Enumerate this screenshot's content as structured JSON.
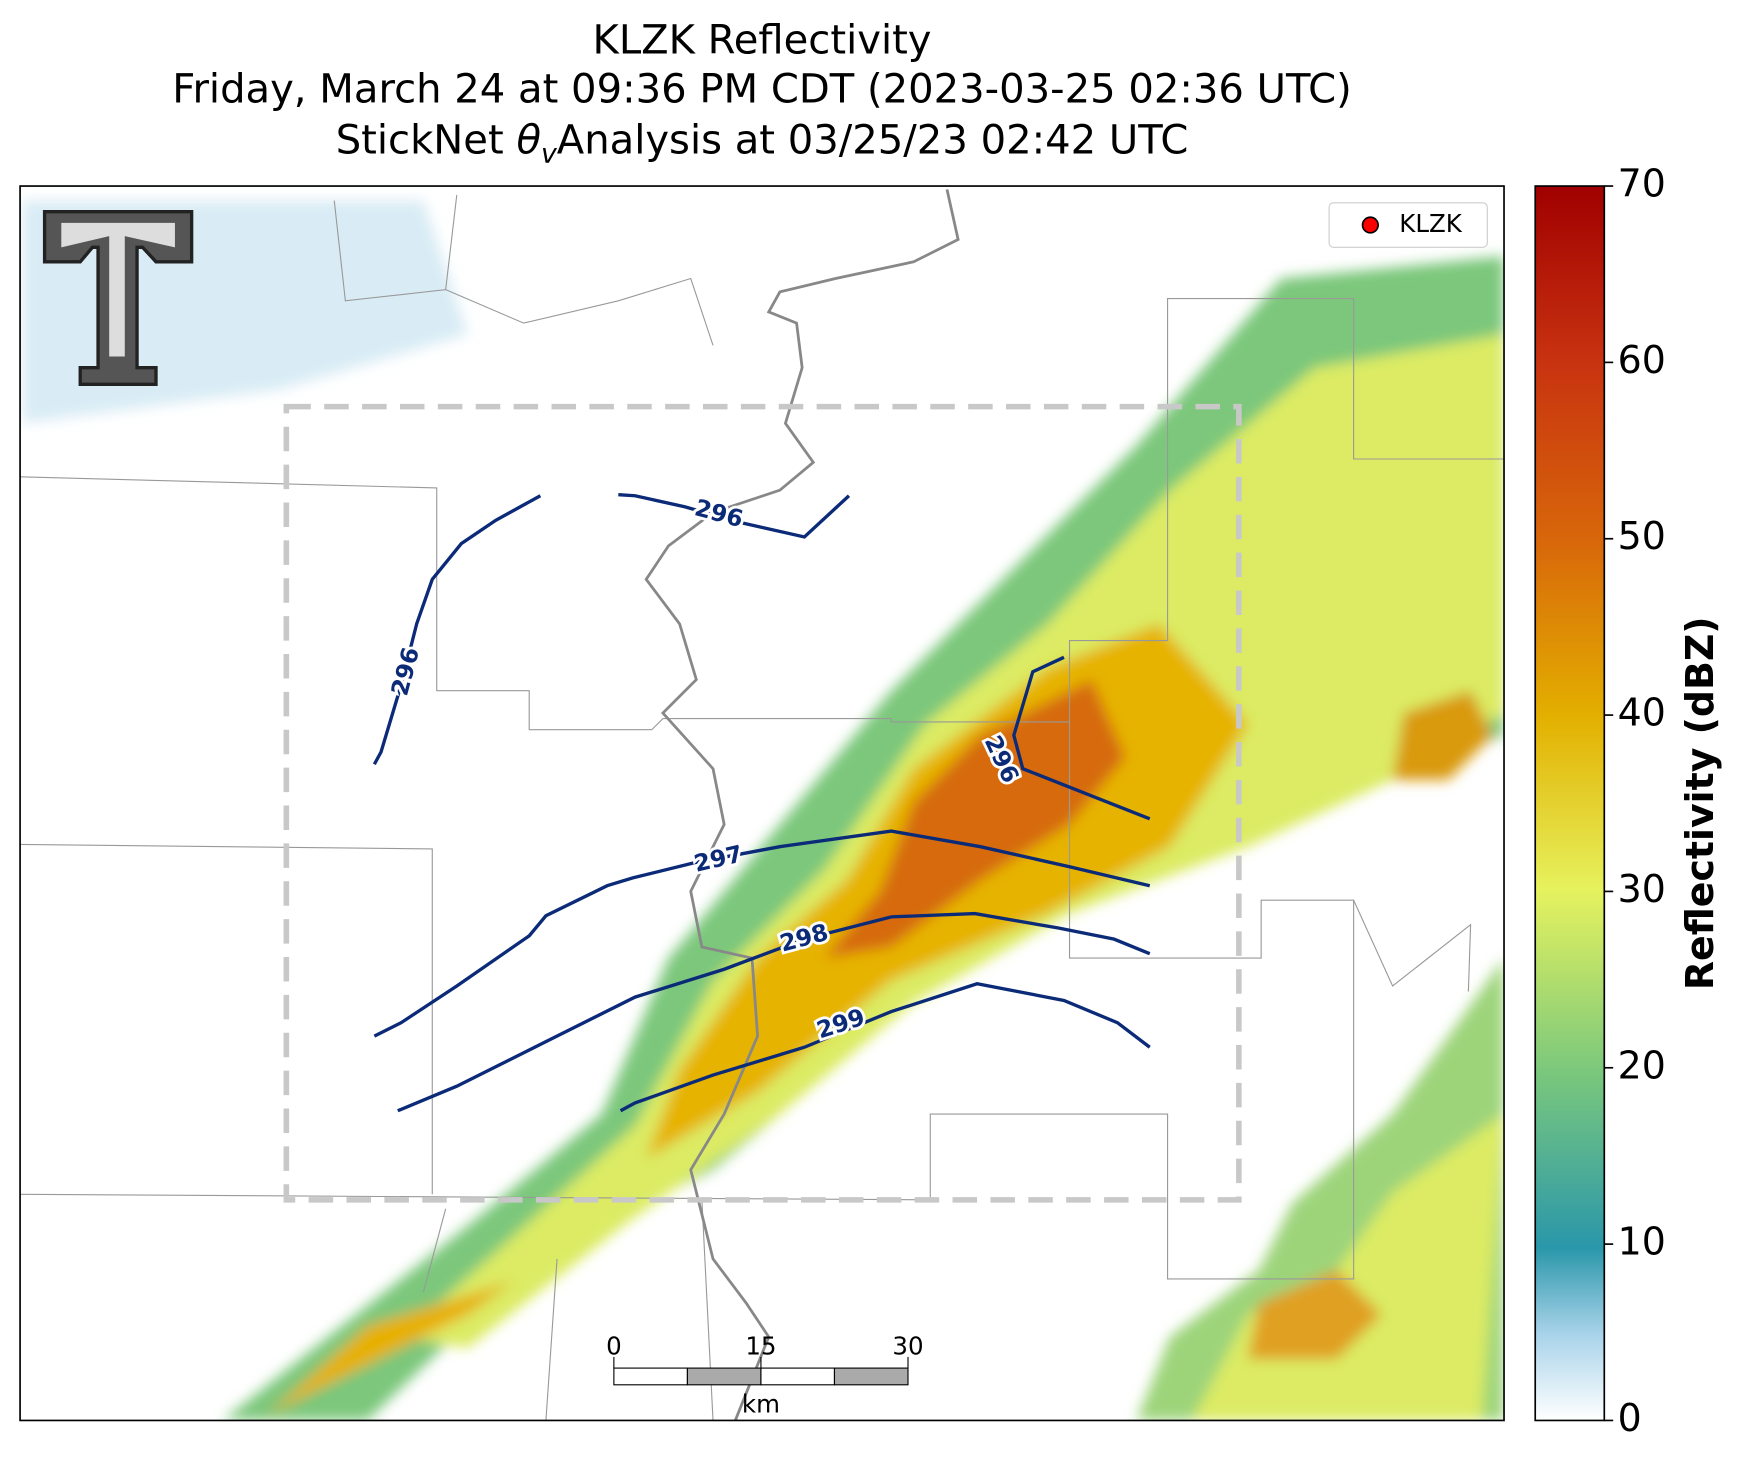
{
  "header": {
    "title": "KLZK Reflectivity",
    "subtitle": "Friday, March 24 at 09:36 PM CDT (2023-03-25 02:36 UTC)",
    "analysis_prefix": "StickNet",
    "symbol": "θ",
    "subscript": "v",
    "analysis_suffix": "Analysis at 03/25/23 02:42 UTC"
  },
  "colorbar": {
    "label": "Reflectivity (dBZ)",
    "lim": [
      0,
      70
    ],
    "ticks": [
      0,
      10,
      20,
      30,
      40,
      50,
      60,
      70
    ]
  },
  "legend": {
    "label": "KLZK",
    "color": "#ff0000"
  },
  "contours": {
    "color": "#0b2a78",
    "levels": [
      296,
      296,
      296,
      297,
      298,
      299
    ]
  },
  "scale_bar": {
    "ticks": [
      0,
      15,
      30
    ],
    "unit": "km"
  }
}
